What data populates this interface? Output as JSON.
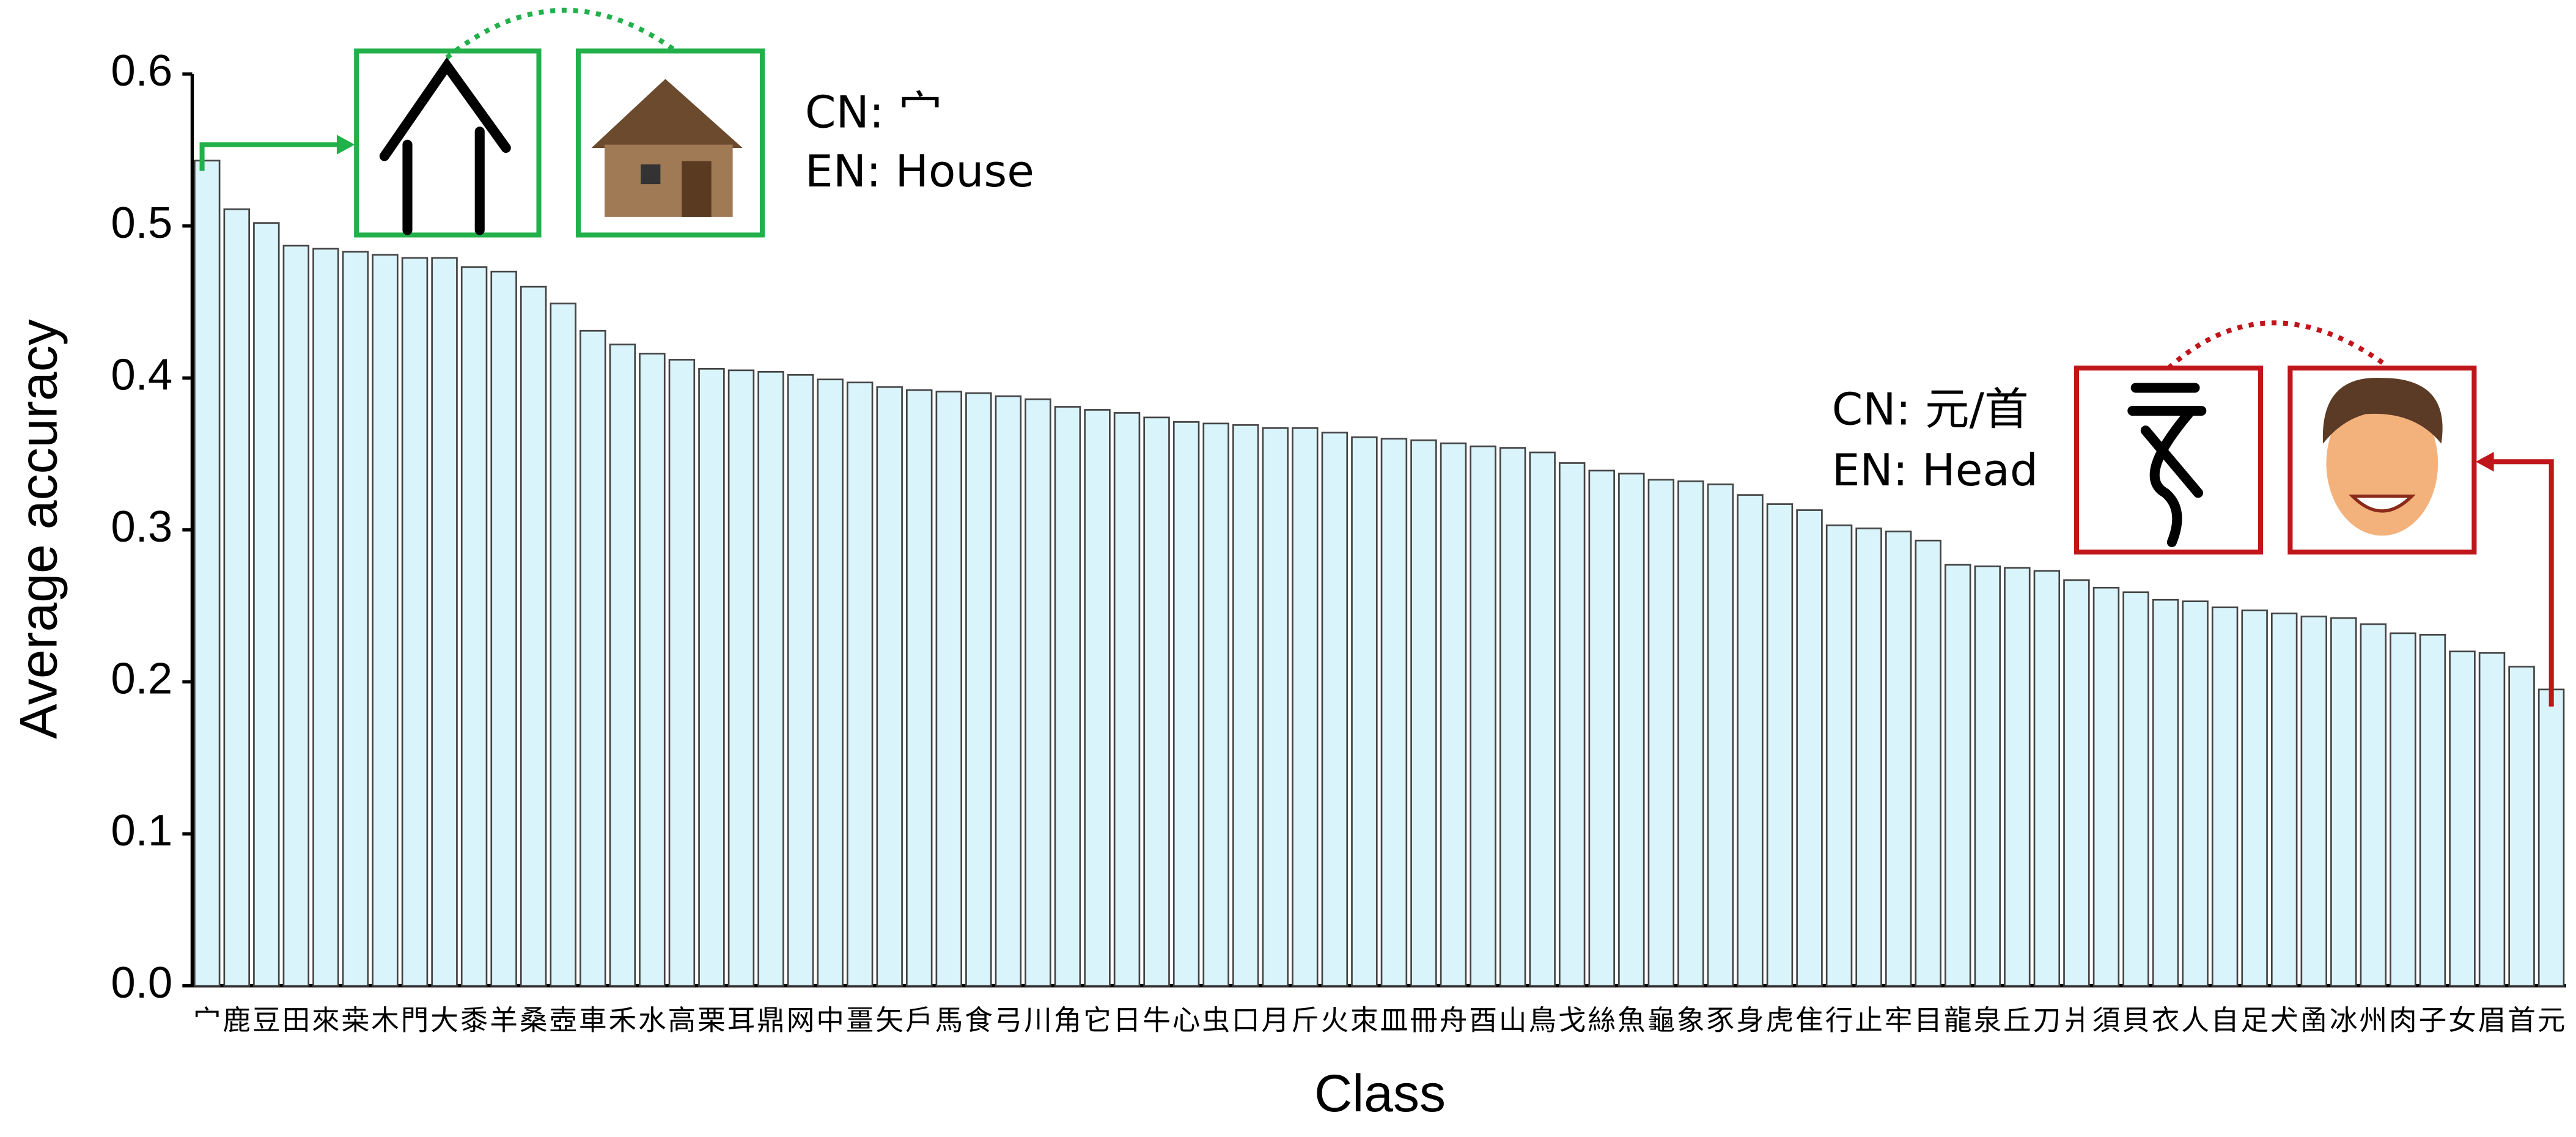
{
  "chart_data": {
    "type": "bar",
    "x_label": "Class",
    "y_label": "Average accuracy",
    "categories": [
      "宀",
      "鹿",
      "豆",
      "田",
      "來",
      "桒",
      "木",
      "門",
      "大",
      "黍",
      "羊",
      "桑",
      "壺",
      "車",
      "禾",
      "水",
      "高",
      "栗",
      "耳",
      "鼎",
      "网",
      "中",
      "畺",
      "矢",
      "戶",
      "馬",
      "食",
      "弓",
      "川",
      "角",
      "它",
      "日",
      "牛",
      "心",
      "虫",
      "口",
      "月",
      "斤",
      "火",
      "朿",
      "皿",
      "冊",
      "舟",
      "酉",
      "山",
      "鳥",
      "戈",
      "絲",
      "魚",
      "龜",
      "象",
      "豕",
      "身",
      "虎",
      "隹",
      "行",
      "止",
      "牢",
      "目",
      "龍",
      "泉",
      "丘",
      "刀",
      "爿",
      "須",
      "貝",
      "衣",
      "人",
      "自",
      "足",
      "犬",
      "圅",
      "冰",
      "州",
      "肉",
      "子",
      "女",
      "眉",
      "首",
      "元"
    ],
    "values": [
      0.543,
      0.511,
      0.502,
      0.487,
      0.485,
      0.483,
      0.481,
      0.479,
      0.479,
      0.473,
      0.47,
      0.46,
      0.449,
      0.431,
      0.422,
      0.416,
      0.412,
      0.406,
      0.405,
      0.404,
      0.402,
      0.399,
      0.397,
      0.394,
      0.392,
      0.391,
      0.39,
      0.388,
      0.386,
      0.381,
      0.379,
      0.377,
      0.374,
      0.371,
      0.37,
      0.369,
      0.367,
      0.367,
      0.364,
      0.361,
      0.36,
      0.359,
      0.357,
      0.355,
      0.354,
      0.351,
      0.344,
      0.339,
      0.337,
      0.333,
      0.332,
      0.33,
      0.323,
      0.317,
      0.313,
      0.303,
      0.301,
      0.299,
      0.293,
      0.277,
      0.276,
      0.275,
      0.273,
      0.267,
      0.262,
      0.259,
      0.254,
      0.253,
      0.249,
      0.247,
      0.245,
      0.243,
      0.242,
      0.238,
      0.232,
      0.231,
      0.22,
      0.219,
      0.21,
      0.195
    ],
    "color": "#d9f4fb",
    "ylim": [
      0,
      0.6
    ],
    "yticks": [
      {
        "value": 0,
        "label": "0.0"
      },
      0.1,
      0.2,
      0.3,
      0.4,
      0.5,
      0.6
    ],
    "annotations": [
      "CN: 宀",
      "EN: House",
      "CN: 元/首",
      "EN: Head"
    ]
  }
}
